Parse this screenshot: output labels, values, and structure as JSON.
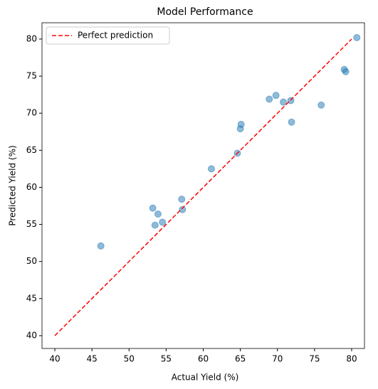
{
  "chart_data": {
    "type": "scatter",
    "title": "Model Performance",
    "x_label": "Actual Yield (%)",
    "y_label": "Predicted Yield (%)",
    "xlim": [
      38.27,
      81.73
    ],
    "ylim": [
      38.27,
      82.2
    ],
    "xticks": [
      40,
      45,
      50,
      55,
      60,
      65,
      70,
      75,
      80
    ],
    "yticks": [
      40,
      45,
      50,
      55,
      60,
      65,
      70,
      75,
      80
    ],
    "legend": "upper left",
    "series": [
      {
        "type": "scatter",
        "color": "#1f77b4",
        "x": [
          46.2,
          53.2,
          53.9,
          53.5,
          54.5,
          57.1,
          57.2,
          61.1,
          64.6,
          65.0,
          65.1,
          68.9,
          69.8,
          70.8,
          71.8,
          71.9,
          75.9,
          79.0,
          79.2,
          80.7
        ],
        "values": [
          52.1,
          57.2,
          56.4,
          54.9,
          55.3,
          58.4,
          57.0,
          62.5,
          64.6,
          67.9,
          68.5,
          71.9,
          72.4,
          71.5,
          71.7,
          68.8,
          71.1,
          75.9,
          75.6,
          80.2
        ]
      },
      {
        "type": "line",
        "name": "Perfect prediction",
        "color": "#ff0000",
        "dashed": true,
        "x": [
          40,
          80
        ],
        "values": [
          40,
          80
        ]
      }
    ]
  }
}
